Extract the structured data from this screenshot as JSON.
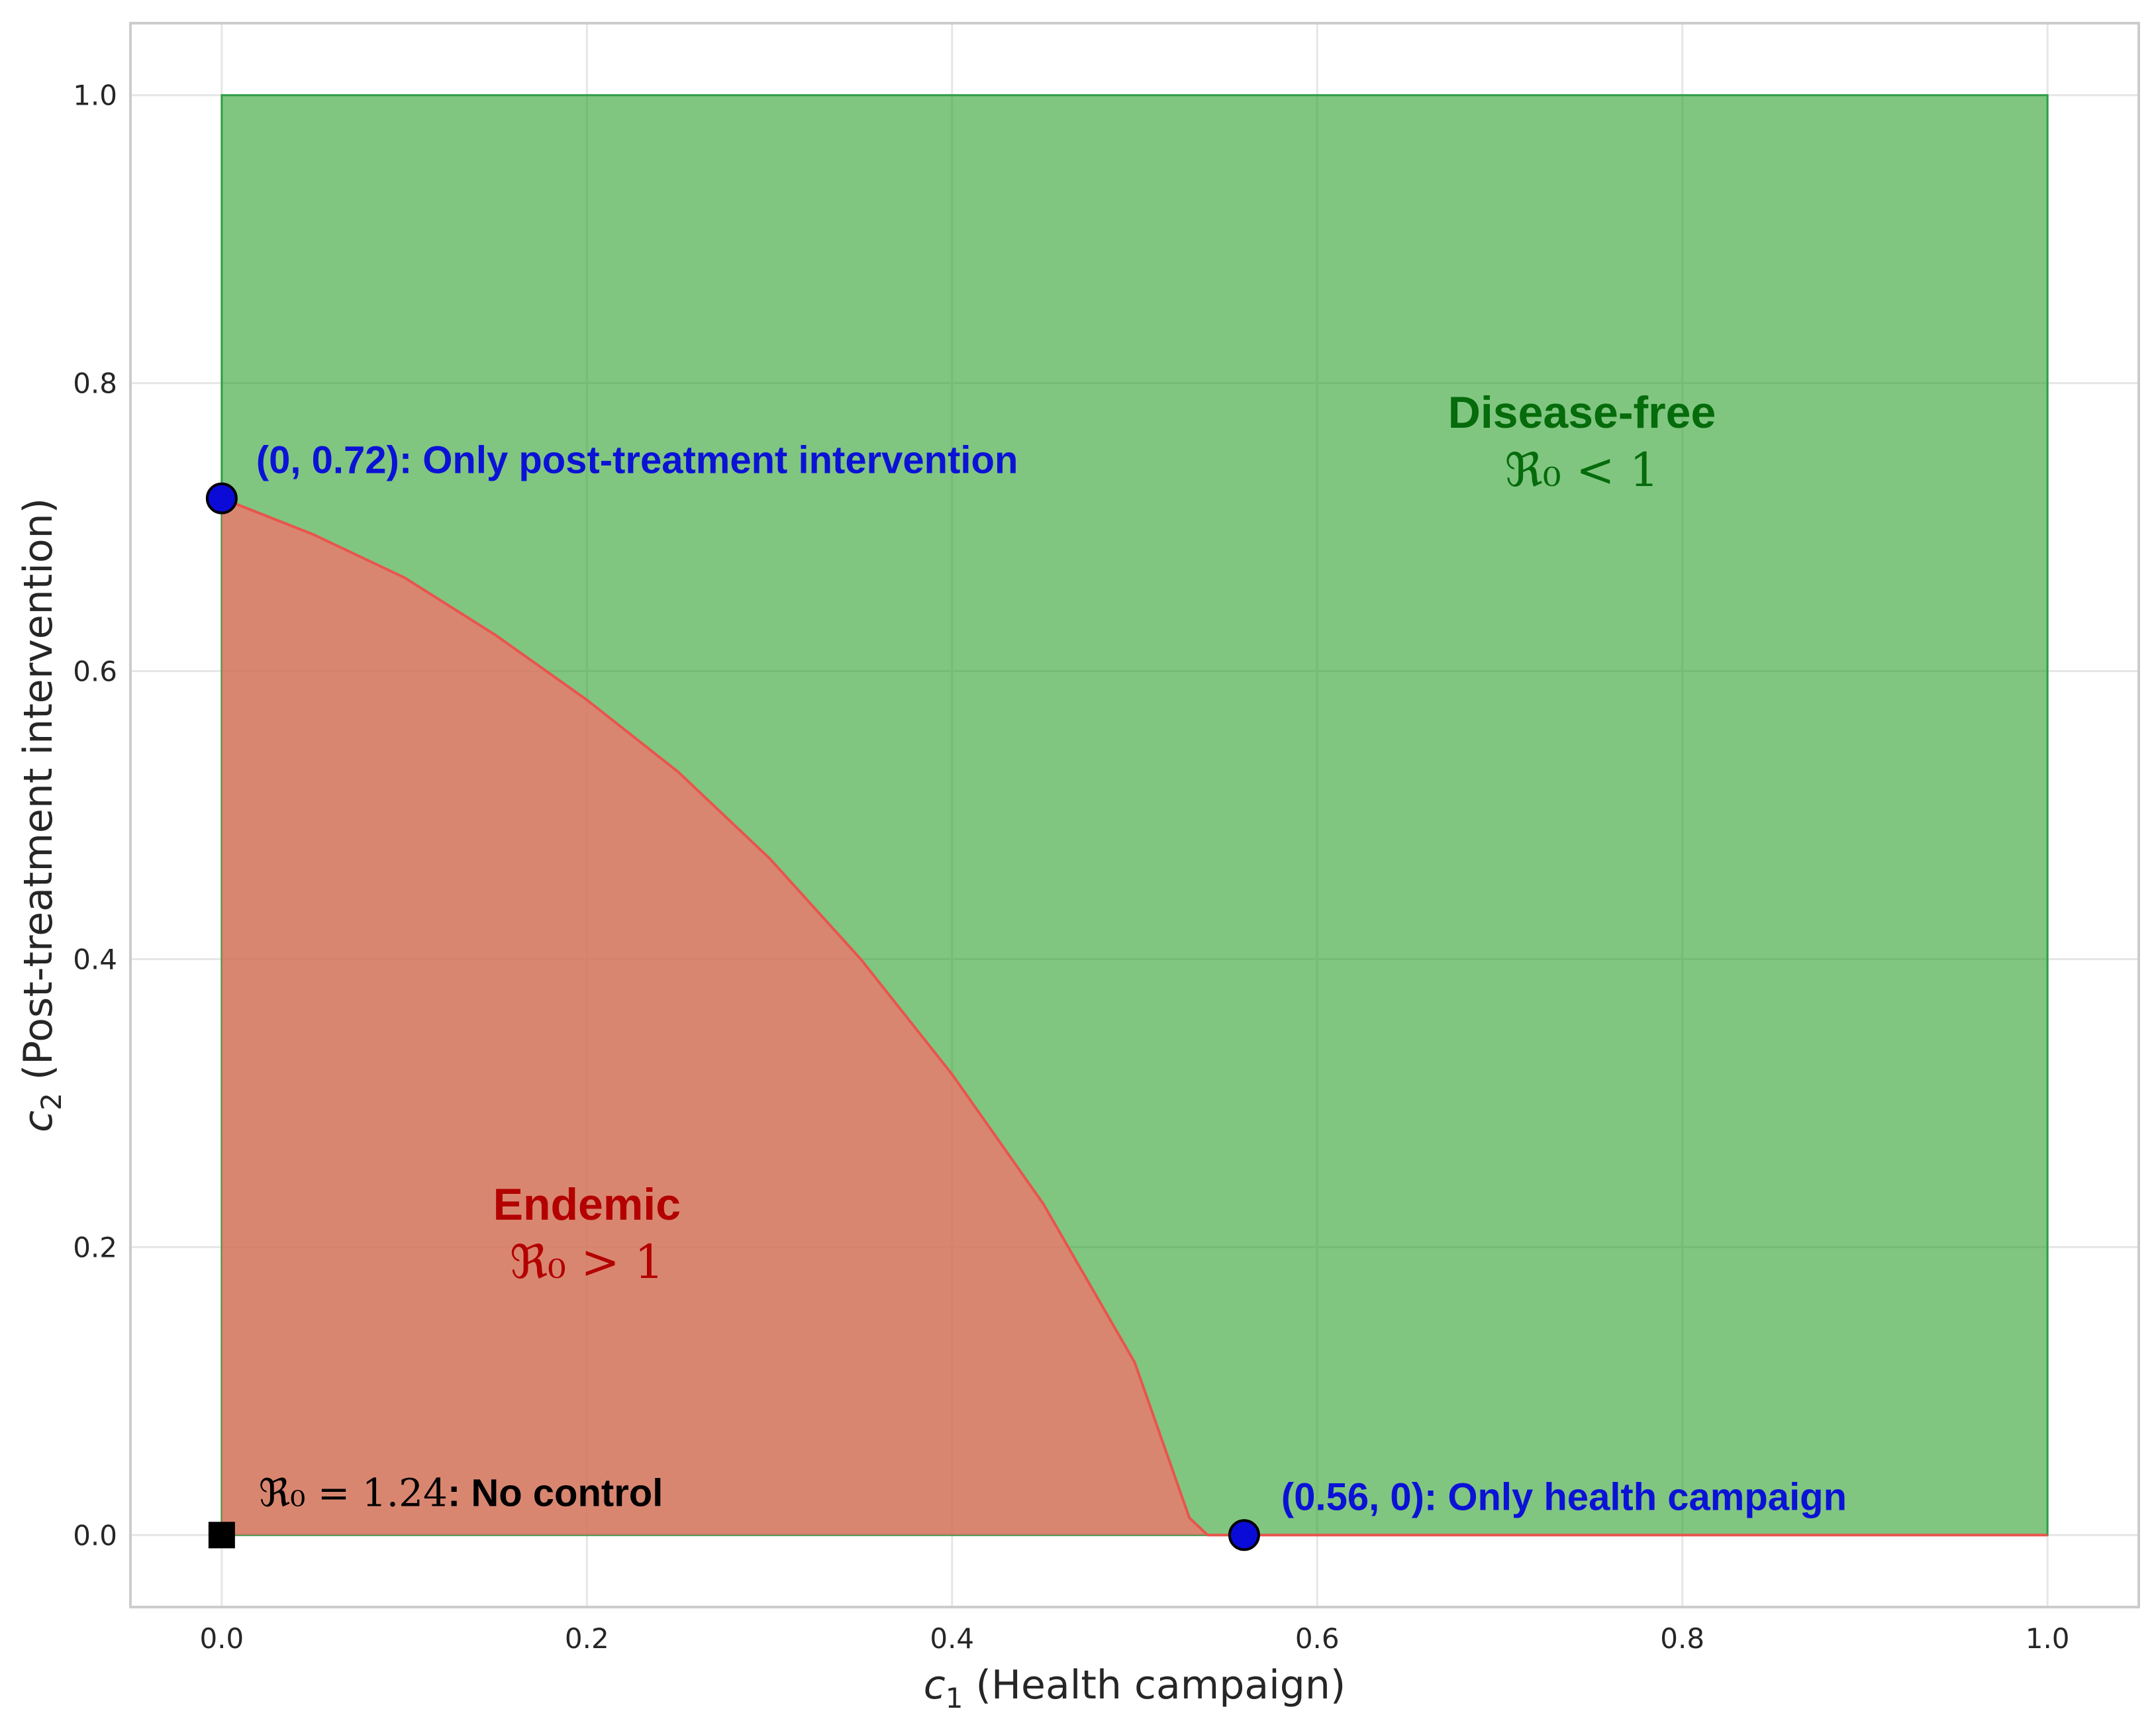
{
  "chart_data": {
    "type": "area",
    "title": "",
    "xlabel_symbol": "c",
    "xlabel_sub": "1",
    "xlabel_text": " (Health campaign)",
    "ylabel_symbol": "c",
    "ylabel_sub": "2",
    "ylabel_text": " (Post-treatment intervention)",
    "xlim": [
      -0.05,
      1.05
    ],
    "ylim": [
      -0.05,
      1.05
    ],
    "xticks": [
      "0.0",
      "0.2",
      "0.4",
      "0.6",
      "0.8",
      "1.0"
    ],
    "yticks": [
      "0.0",
      "0.2",
      "0.4",
      "0.6",
      "0.8",
      "1.0"
    ],
    "grid": true,
    "boundary": {
      "c1": [
        0.0,
        0.05,
        0.1,
        0.15,
        0.2,
        0.25,
        0.3,
        0.35,
        0.4,
        0.45,
        0.5,
        0.53,
        0.54,
        0.56,
        1.0
      ],
      "c2": [
        0.72,
        0.695,
        0.665,
        0.625,
        0.58,
        0.53,
        0.47,
        0.4,
        0.32,
        0.23,
        0.12,
        0.012,
        0.0,
        0.0,
        0.0
      ]
    },
    "regions": {
      "endemic": {
        "title": "Endemic",
        "condition": "ℜ₀ > 1",
        "color": "#ff6b6b",
        "text_color": "#b30000"
      },
      "disease_free": {
        "title": "Disease-free",
        "condition": "ℜ₀ < 1",
        "color": "#2ca02c",
        "text_color": "#056b0b"
      }
    },
    "points": [
      {
        "x": 0.0,
        "y": 0.72,
        "label": "(0, 0.72): Only post-treatment intervention",
        "marker": "circle",
        "color": "#0b0bd8"
      },
      {
        "x": 0.56,
        "y": 0.0,
        "label": "(0.56, 0): Only health campaign",
        "marker": "circle",
        "color": "#0b0bd8"
      },
      {
        "x": 0.0,
        "y": 0.0,
        "label_math": "ℜ₀ = 1.24",
        "label_text": ": No control",
        "marker": "square",
        "color": "#000000"
      }
    ]
  }
}
